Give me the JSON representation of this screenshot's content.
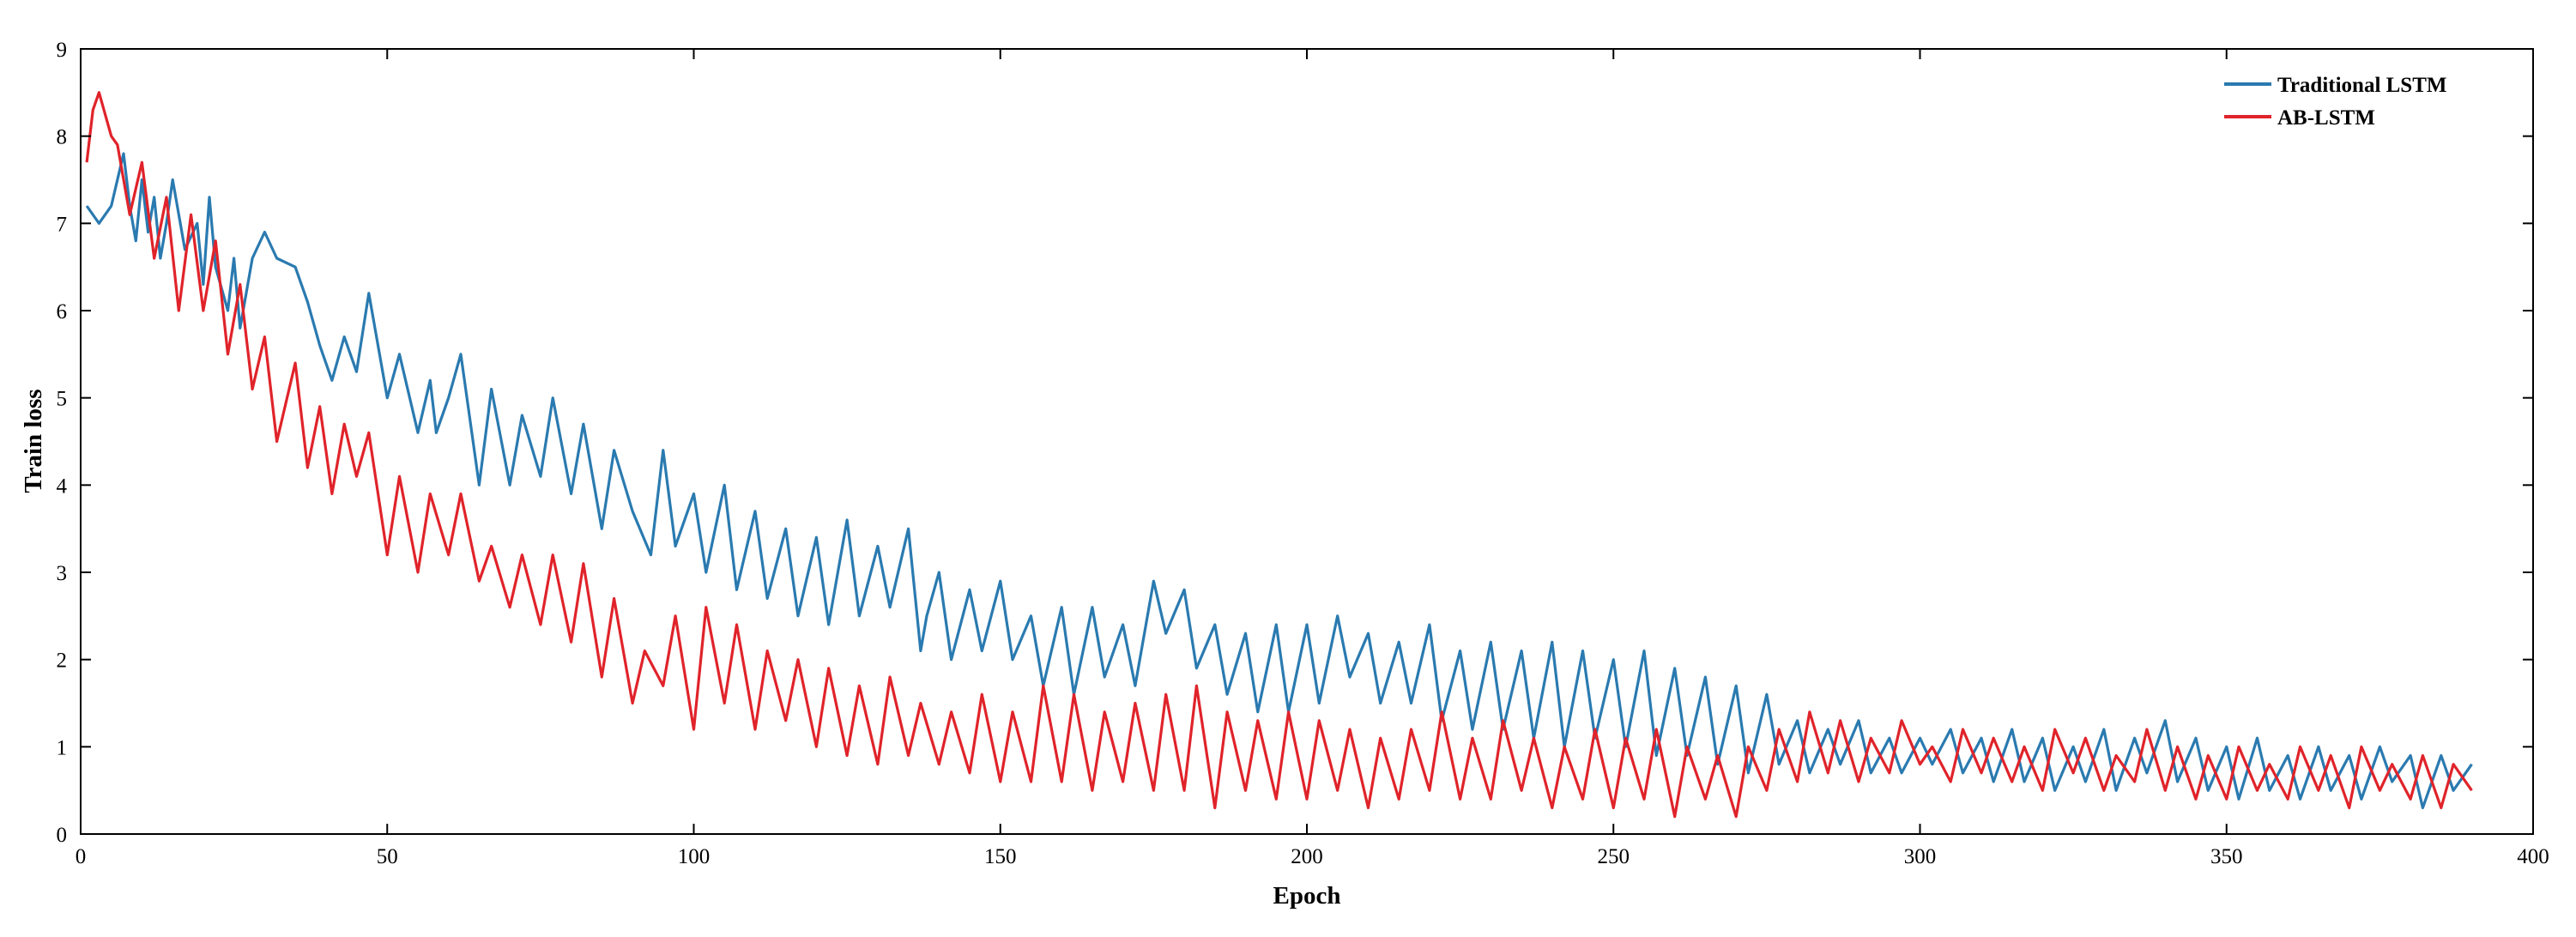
{
  "chart_data": {
    "type": "line",
    "title": "",
    "xlabel": "Epoch",
    "ylabel": "Train loss",
    "xlim": [
      0,
      400
    ],
    "ylim": [
      0,
      9
    ],
    "xticks": [
      0,
      50,
      100,
      150,
      200,
      250,
      300,
      350,
      400
    ],
    "yticks": [
      0,
      1,
      2,
      3,
      4,
      5,
      6,
      7,
      8,
      9
    ],
    "grid": false,
    "legend_position": "top-right",
    "series": [
      {
        "name": "Traditional LSTM",
        "color": "#2a7ab0",
        "x": [
          1,
          3,
          5,
          7,
          8,
          9,
          10,
          11,
          12,
          13,
          14,
          15,
          17,
          19,
          20,
          21,
          22,
          24,
          25,
          26,
          28,
          30,
          32,
          35,
          37,
          39,
          41,
          43,
          45,
          47,
          50,
          52,
          55,
          57,
          58,
          60,
          62,
          65,
          67,
          70,
          72,
          75,
          77,
          80,
          82,
          85,
          87,
          90,
          93,
          95,
          97,
          100,
          102,
          105,
          107,
          110,
          112,
          115,
          117,
          120,
          122,
          125,
          127,
          130,
          132,
          135,
          137,
          138,
          140,
          142,
          145,
          147,
          150,
          152,
          155,
          157,
          160,
          162,
          165,
          167,
          170,
          172,
          175,
          177,
          180,
          182,
          185,
          187,
          190,
          192,
          195,
          197,
          200,
          202,
          205,
          207,
          210,
          212,
          215,
          217,
          220,
          222,
          225,
          227,
          230,
          232,
          235,
          237,
          240,
          242,
          245,
          247,
          250,
          252,
          255,
          257,
          260,
          262,
          265,
          267,
          270,
          272,
          275,
          277,
          280,
          282,
          285,
          287,
          290,
          292,
          295,
          297,
          300,
          302,
          305,
          307,
          310,
          312,
          315,
          317,
          320,
          322,
          325,
          327,
          330,
          332,
          335,
          337,
          340,
          342,
          345,
          347,
          350,
          352,
          355,
          357,
          360,
          362,
          365,
          367,
          370,
          372,
          375,
          377,
          380,
          382,
          385,
          387,
          390
        ],
        "values": [
          7.2,
          7.0,
          7.2,
          7.8,
          7.2,
          6.8,
          7.5,
          6.9,
          7.3,
          6.6,
          7.0,
          7.5,
          6.7,
          7.0,
          6.3,
          7.3,
          6.5,
          6.0,
          6.6,
          5.8,
          6.6,
          6.9,
          6.6,
          6.5,
          6.1,
          5.6,
          5.2,
          5.7,
          5.3,
          6.2,
          5.0,
          5.5,
          4.6,
          5.2,
          4.6,
          5.0,
          5.5,
          4.0,
          5.1,
          4.0,
          4.8,
          4.1,
          5.0,
          3.9,
          4.7,
          3.5,
          4.4,
          3.7,
          3.2,
          4.4,
          3.3,
          3.9,
          3.0,
          4.0,
          2.8,
          3.7,
          2.7,
          3.5,
          2.5,
          3.4,
          2.4,
          3.6,
          2.5,
          3.3,
          2.6,
          3.5,
          2.1,
          2.5,
          3.0,
          2.0,
          2.8,
          2.1,
          2.9,
          2.0,
          2.5,
          1.7,
          2.6,
          1.6,
          2.6,
          1.8,
          2.4,
          1.7,
          2.9,
          2.3,
          2.8,
          1.9,
          2.4,
          1.6,
          2.3,
          1.4,
          2.4,
          1.4,
          2.4,
          1.5,
          2.5,
          1.8,
          2.3,
          1.5,
          2.2,
          1.5,
          2.4,
          1.3,
          2.1,
          1.2,
          2.2,
          1.2,
          2.1,
          1.1,
          2.2,
          1.0,
          2.1,
          1.1,
          2.0,
          1.0,
          2.1,
          0.9,
          1.9,
          0.9,
          1.8,
          0.8,
          1.7,
          0.7,
          1.6,
          0.8,
          1.3,
          0.7,
          1.2,
          0.8,
          1.3,
          0.7,
          1.1,
          0.7,
          1.1,
          0.8,
          1.2,
          0.7,
          1.1,
          0.6,
          1.2,
          0.6,
          1.1,
          0.5,
          1.0,
          0.6,
          1.2,
          0.5,
          1.1,
          0.7,
          1.3,
          0.6,
          1.1,
          0.5,
          1.0,
          0.4,
          1.1,
          0.5,
          0.9,
          0.4,
          1.0,
          0.5,
          0.9,
          0.4,
          1.0,
          0.6,
          0.9,
          0.3,
          0.9,
          0.5,
          0.8
        ]
      },
      {
        "name": "AB-LSTM",
        "color": "#e0232a",
        "x": [
          1,
          2,
          3,
          5,
          6,
          8,
          10,
          12,
          14,
          16,
          18,
          20,
          22,
          24,
          26,
          28,
          30,
          32,
          35,
          37,
          39,
          41,
          43,
          45,
          47,
          50,
          52,
          55,
          57,
          60,
          62,
          65,
          67,
          70,
          72,
          75,
          77,
          80,
          82,
          85,
          87,
          90,
          92,
          95,
          97,
          100,
          102,
          105,
          107,
          110,
          112,
          115,
          117,
          120,
          122,
          125,
          127,
          130,
          132,
          135,
          137,
          140,
          142,
          145,
          147,
          150,
          152,
          155,
          157,
          160,
          162,
          165,
          167,
          170,
          172,
          175,
          177,
          180,
          182,
          185,
          187,
          190,
          192,
          195,
          197,
          200,
          202,
          205,
          207,
          210,
          212,
          215,
          217,
          220,
          222,
          225,
          227,
          230,
          232,
          235,
          237,
          240,
          242,
          245,
          247,
          250,
          252,
          255,
          257,
          260,
          262,
          265,
          267,
          270,
          272,
          275,
          277,
          280,
          282,
          285,
          287,
          290,
          292,
          295,
          297,
          300,
          302,
          305,
          307,
          310,
          312,
          315,
          317,
          320,
          322,
          325,
          327,
          330,
          332,
          335,
          337,
          340,
          342,
          345,
          347,
          350,
          352,
          355,
          357,
          360,
          362,
          365,
          367,
          370,
          372,
          375,
          377,
          380,
          382,
          385,
          387,
          390
        ],
        "values": [
          7.7,
          8.3,
          8.5,
          8.0,
          7.9,
          7.1,
          7.7,
          6.6,
          7.3,
          6.0,
          7.1,
          6.0,
          6.8,
          5.5,
          6.3,
          5.1,
          5.7,
          4.5,
          5.4,
          4.2,
          4.9,
          3.9,
          4.7,
          4.1,
          4.6,
          3.2,
          4.1,
          3.0,
          3.9,
          3.2,
          3.9,
          2.9,
          3.3,
          2.6,
          3.2,
          2.4,
          3.2,
          2.2,
          3.1,
          1.8,
          2.7,
          1.5,
          2.1,
          1.7,
          2.5,
          1.2,
          2.6,
          1.5,
          2.4,
          1.2,
          2.1,
          1.3,
          2.0,
          1.0,
          1.9,
          0.9,
          1.7,
          0.8,
          1.8,
          0.9,
          1.5,
          0.8,
          1.4,
          0.7,
          1.6,
          0.6,
          1.4,
          0.6,
          1.7,
          0.6,
          1.6,
          0.5,
          1.4,
          0.6,
          1.5,
          0.5,
          1.6,
          0.5,
          1.7,
          0.3,
          1.4,
          0.5,
          1.3,
          0.4,
          1.4,
          0.4,
          1.3,
          0.5,
          1.2,
          0.3,
          1.1,
          0.4,
          1.2,
          0.5,
          1.4,
          0.4,
          1.1,
          0.4,
          1.3,
          0.5,
          1.1,
          0.3,
          1.0,
          0.4,
          1.2,
          0.3,
          1.1,
          0.4,
          1.2,
          0.2,
          1.0,
          0.4,
          0.9,
          0.2,
          1.0,
          0.5,
          1.2,
          0.6,
          1.4,
          0.7,
          1.3,
          0.6,
          1.1,
          0.7,
          1.3,
          0.8,
          1.0,
          0.6,
          1.2,
          0.7,
          1.1,
          0.6,
          1.0,
          0.5,
          1.2,
          0.7,
          1.1,
          0.5,
          0.9,
          0.6,
          1.2,
          0.5,
          1.0,
          0.4,
          0.9,
          0.4,
          1.0,
          0.5,
          0.8,
          0.4,
          1.0,
          0.5,
          0.9,
          0.3,
          1.0,
          0.5,
          0.8,
          0.4,
          0.9,
          0.3,
          0.8,
          0.5
        ]
      }
    ]
  }
}
